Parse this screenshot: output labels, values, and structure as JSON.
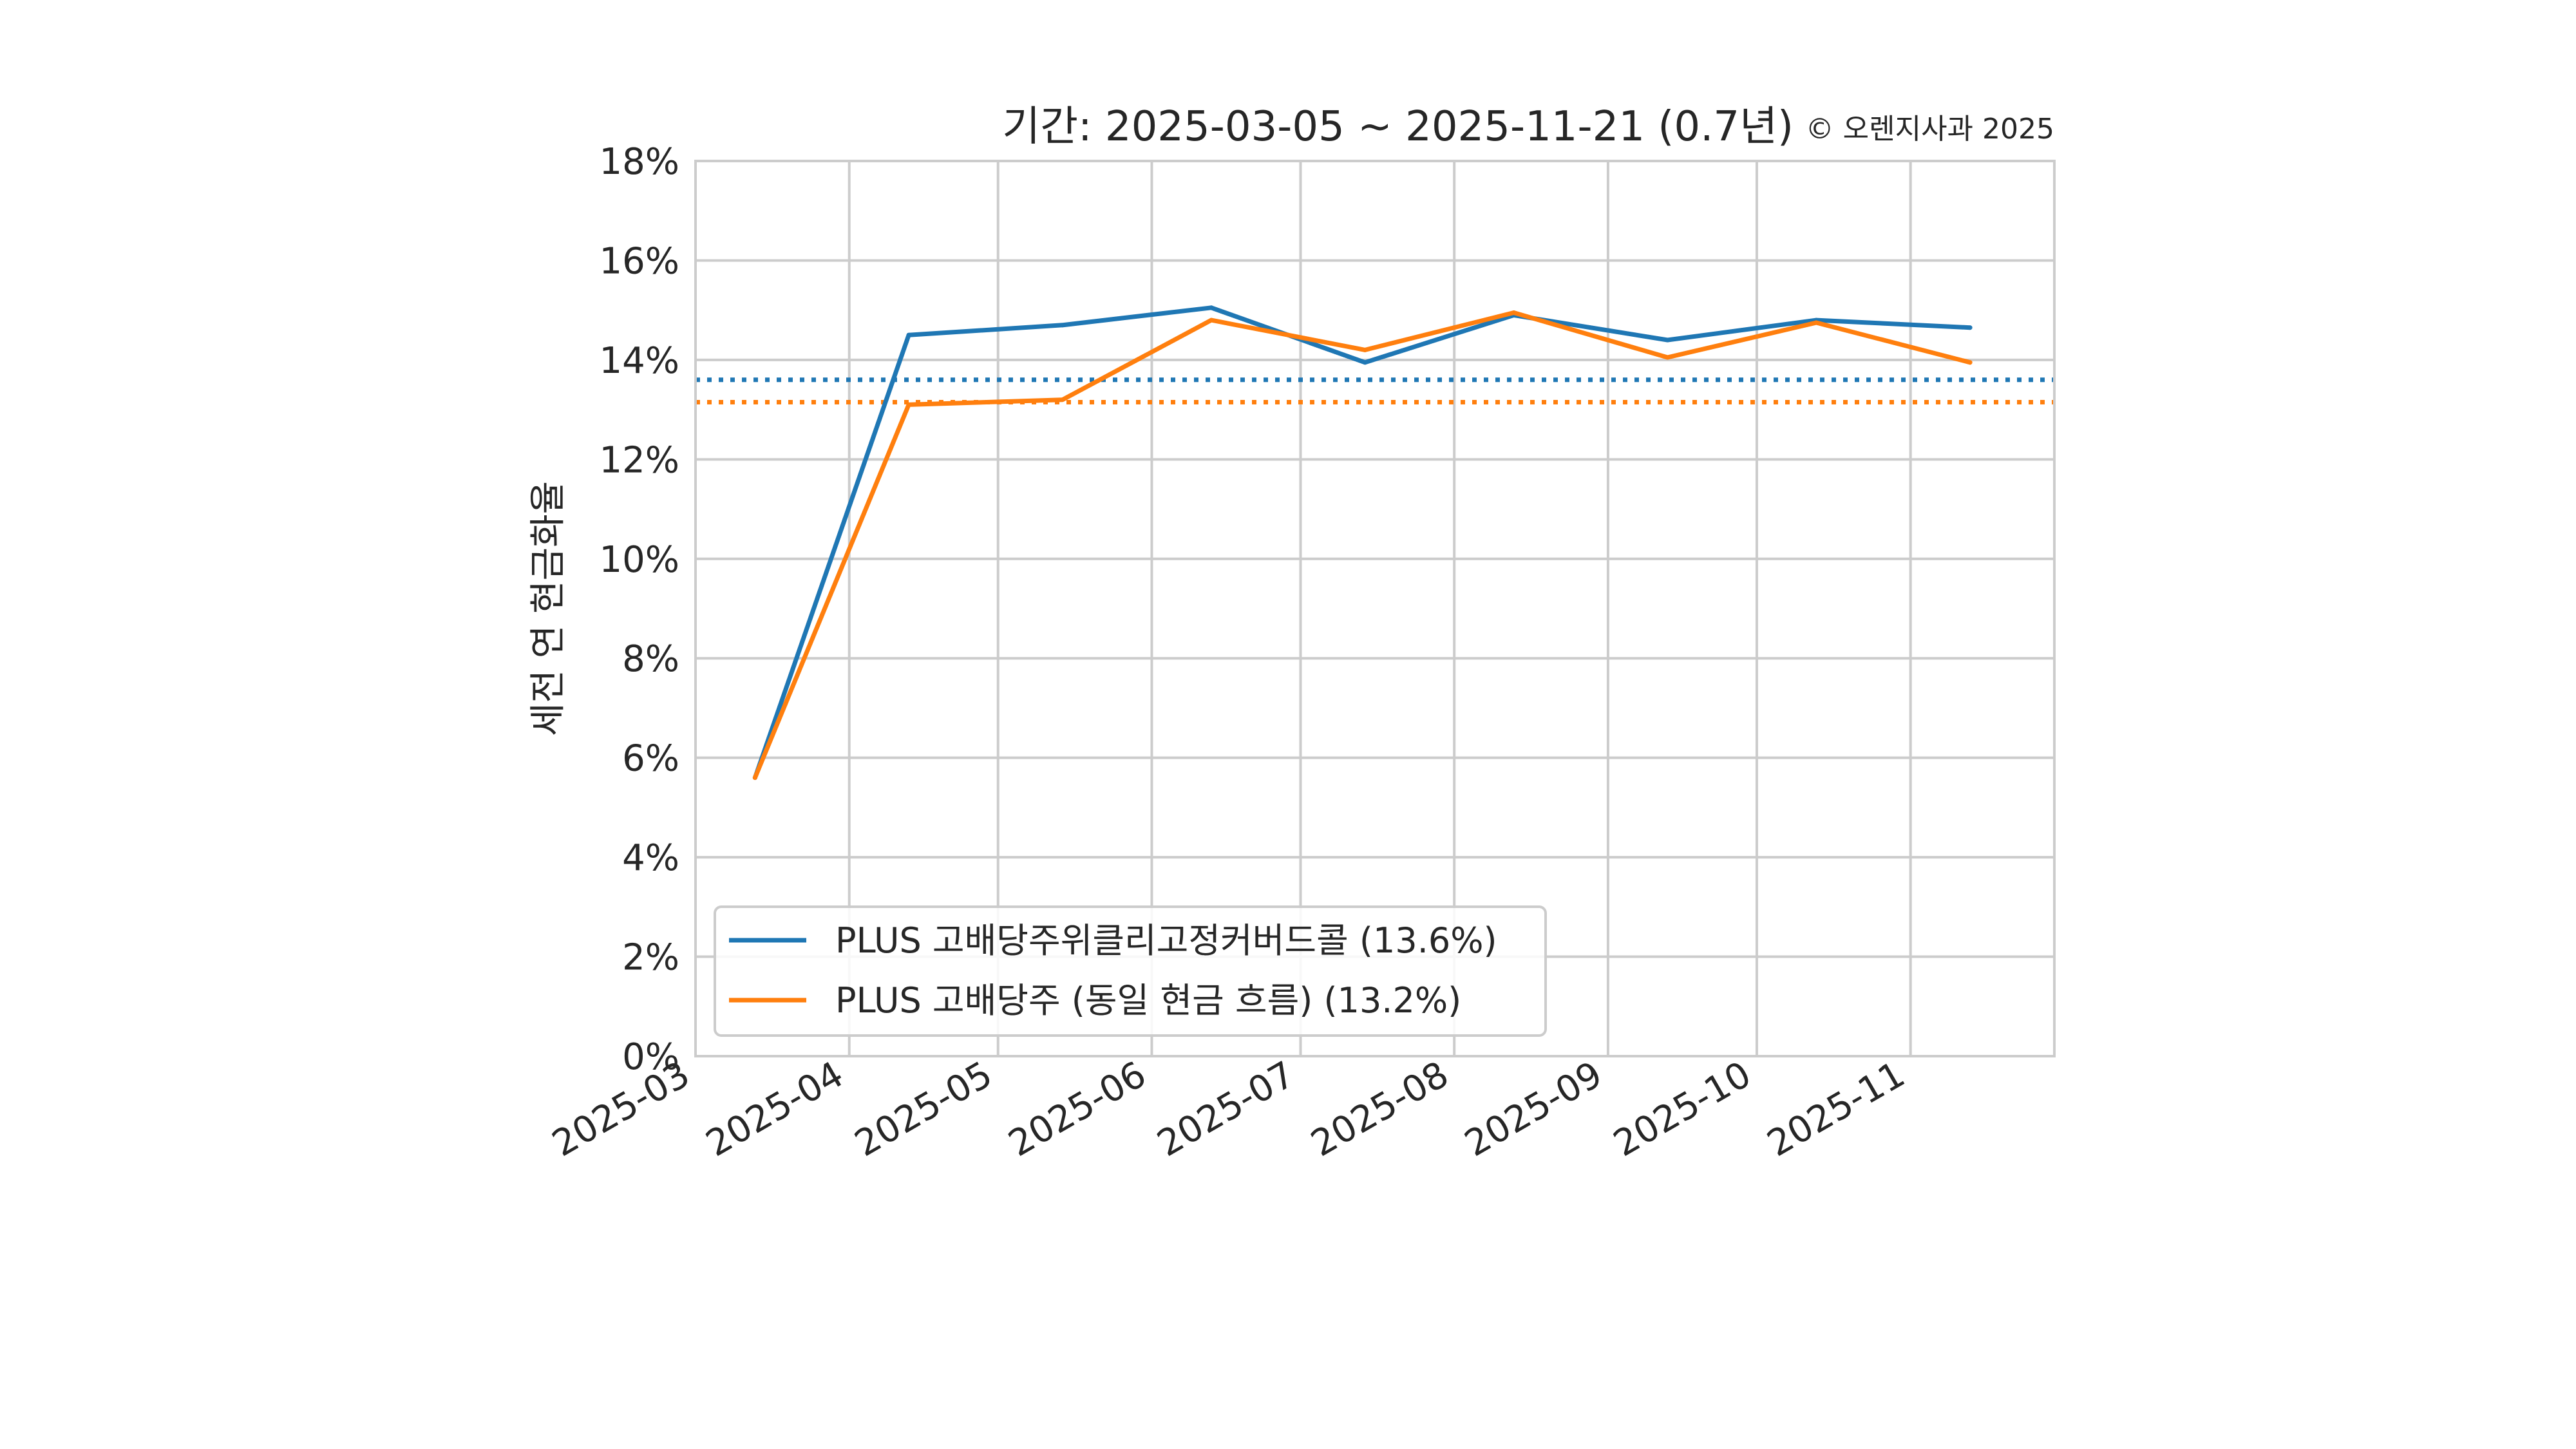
{
  "chart_data": {
    "type": "line",
    "title": "기간: 2025-03-05 ~ 2025-11-21 (0.7년)",
    "subtitle": "© 오렌지사과 2025",
    "ylabel": "세전 연 현금화율",
    "xlabel": "",
    "ylim": [
      0,
      18
    ],
    "yticks": [
      0,
      2,
      4,
      6,
      8,
      10,
      12,
      14,
      16,
      18
    ],
    "ytick_labels": [
      "0%",
      "2%",
      "4%",
      "6%",
      "8%",
      "10%",
      "12%",
      "14%",
      "16%",
      "18%"
    ],
    "xlim": [
      "2025-03-01",
      "2025-11-30"
    ],
    "xticks": [
      "2025-03-01",
      "2025-04-01",
      "2025-05-01",
      "2025-06-01",
      "2025-07-01",
      "2025-08-01",
      "2025-09-01",
      "2025-10-01",
      "2025-11-01"
    ],
    "xtick_labels": [
      "2025-03",
      "2025-04",
      "2025-05",
      "2025-06",
      "2025-07",
      "2025-08",
      "2025-09",
      "2025-10",
      "2025-11"
    ],
    "grid": true,
    "legend_position": "lower-left",
    "series": [
      {
        "name": "PLUS 고배당주위클리고정커버드콜 (13.6%)",
        "color": "#1f77b4",
        "x": [
          "2025-03-13",
          "2025-04-13",
          "2025-05-14",
          "2025-06-13",
          "2025-07-14",
          "2025-08-13",
          "2025-09-13",
          "2025-10-13",
          "2025-11-13"
        ],
        "y": [
          5.6,
          14.5,
          14.7,
          15.05,
          13.95,
          14.9,
          14.4,
          14.8,
          14.65
        ],
        "mean": 13.6
      },
      {
        "name": "PLUS 고배당주 (동일 현금 흐름) (13.2%)",
        "color": "#ff7f0e",
        "x": [
          "2025-03-13",
          "2025-04-13",
          "2025-05-14",
          "2025-06-13",
          "2025-07-14",
          "2025-08-13",
          "2025-09-13",
          "2025-10-13",
          "2025-11-13"
        ],
        "y": [
          5.6,
          13.1,
          13.2,
          14.8,
          14.2,
          14.95,
          14.05,
          14.75,
          13.95
        ],
        "mean": 13.15
      }
    ]
  }
}
